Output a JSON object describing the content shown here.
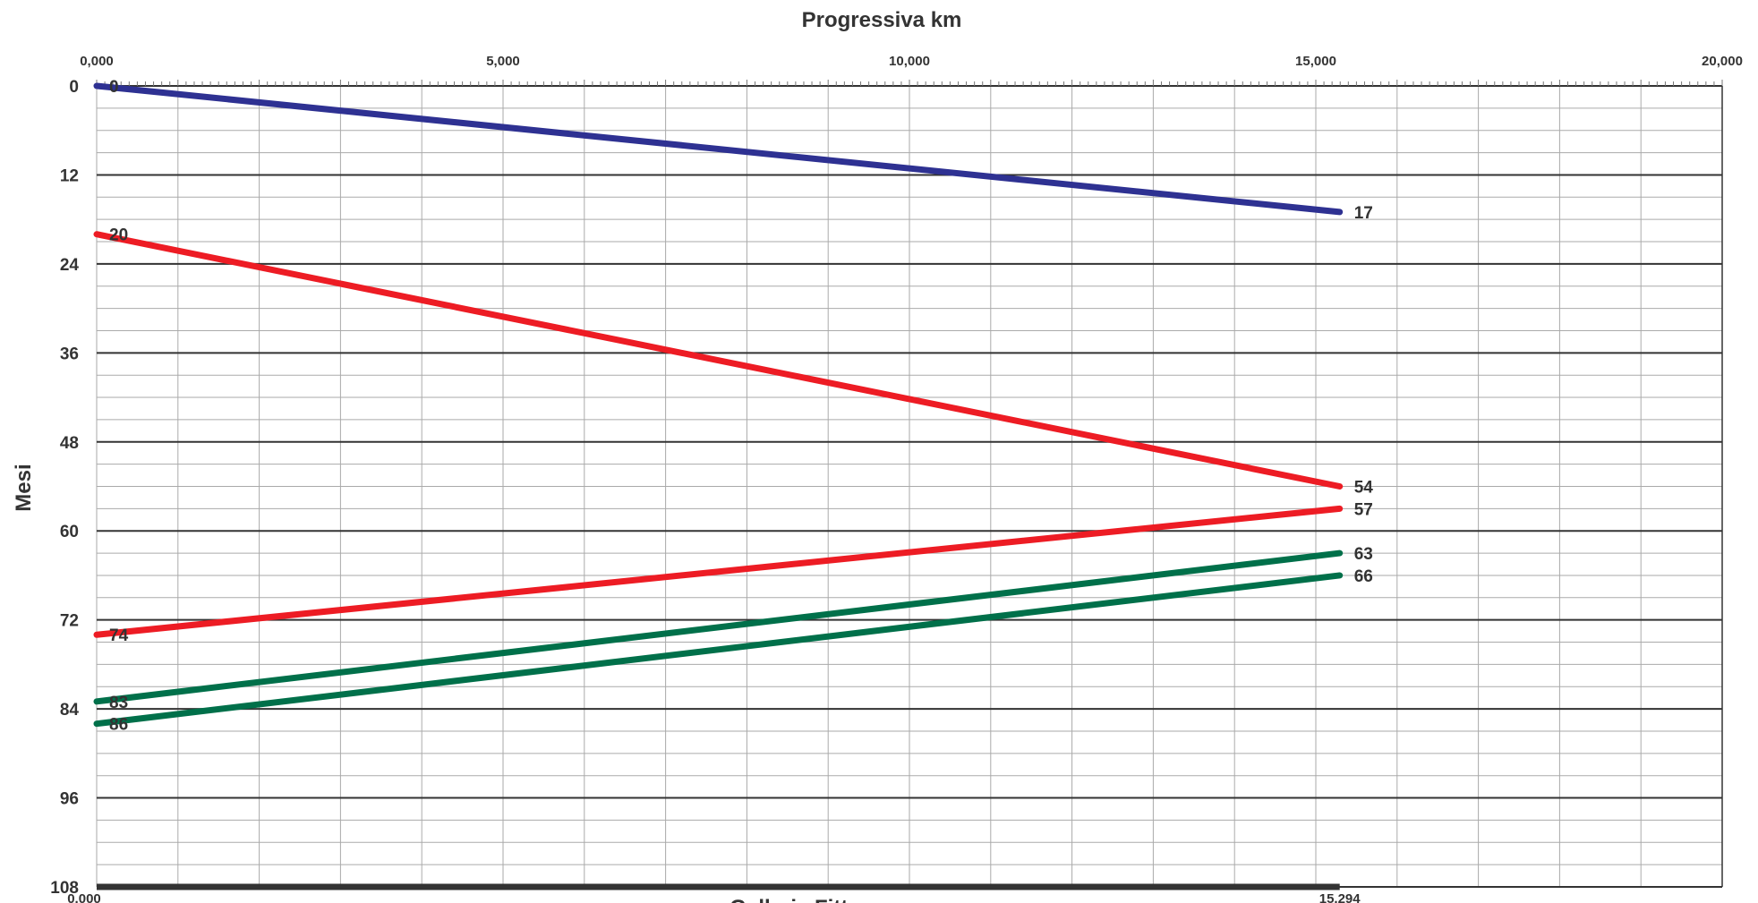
{
  "chart_data": {
    "type": "line",
    "title": "Progressiva km",
    "xlabel": "Galleria Fittanze",
    "ylabel": "Mesi",
    "xlim": [
      0,
      20000
    ],
    "ylim": [
      0,
      108
    ],
    "y_inverted": true,
    "x_ticks": [
      {
        "value": 0,
        "label": "0,000"
      },
      {
        "value": 5000,
        "label": "5,000"
      },
      {
        "value": 10000,
        "label": "10,000"
      },
      {
        "value": 15000,
        "label": "15,000"
      },
      {
        "value": 20000,
        "label": "20,000"
      }
    ],
    "x_bottom_ticks": [
      {
        "value": 0,
        "label": "0,000"
      },
      {
        "value": 15294,
        "label": "15,294"
      }
    ],
    "y_ticks": [
      {
        "value": 0,
        "label": "0"
      },
      {
        "value": 12,
        "label": "12"
      },
      {
        "value": 24,
        "label": "24"
      },
      {
        "value": 36,
        "label": "36"
      },
      {
        "value": 48,
        "label": "48"
      },
      {
        "value": 60,
        "label": "60"
      },
      {
        "value": 72,
        "label": "72"
      },
      {
        "value": 84,
        "label": "84"
      },
      {
        "value": 96,
        "label": "96"
      },
      {
        "value": 108,
        "label": "108"
      }
    ],
    "grid": true,
    "colors": {
      "blue": "#2e3192",
      "red": "#ed1c24",
      "green": "#00704a",
      "grid_major": "#333333",
      "grid_minor": "#aaaaaa",
      "text": "#333333"
    },
    "series": [
      {
        "color": "#2e3192",
        "x": [
          0,
          15294
        ],
        "y": [
          0,
          17
        ],
        "start_label": "0",
        "end_label": "17"
      },
      {
        "color": "#ed1c24",
        "x": [
          0,
          15294
        ],
        "y": [
          20,
          54
        ],
        "start_label": "20",
        "end_label": "54"
      },
      {
        "color": "#ed1c24",
        "x": [
          0,
          15294
        ],
        "y": [
          74,
          57
        ],
        "start_label": "74",
        "end_label": "57"
      },
      {
        "color": "#00704a",
        "x": [
          0,
          15294
        ],
        "y": [
          83,
          63
        ],
        "start_label": "83",
        "end_label": "63"
      },
      {
        "color": "#00704a",
        "x": [
          0,
          15294
        ],
        "y": [
          86,
          66
        ],
        "start_label": "86",
        "end_label": "66"
      }
    ],
    "baseline": {
      "color": "#333333",
      "x": [
        0,
        15294
      ],
      "y": 108
    }
  }
}
